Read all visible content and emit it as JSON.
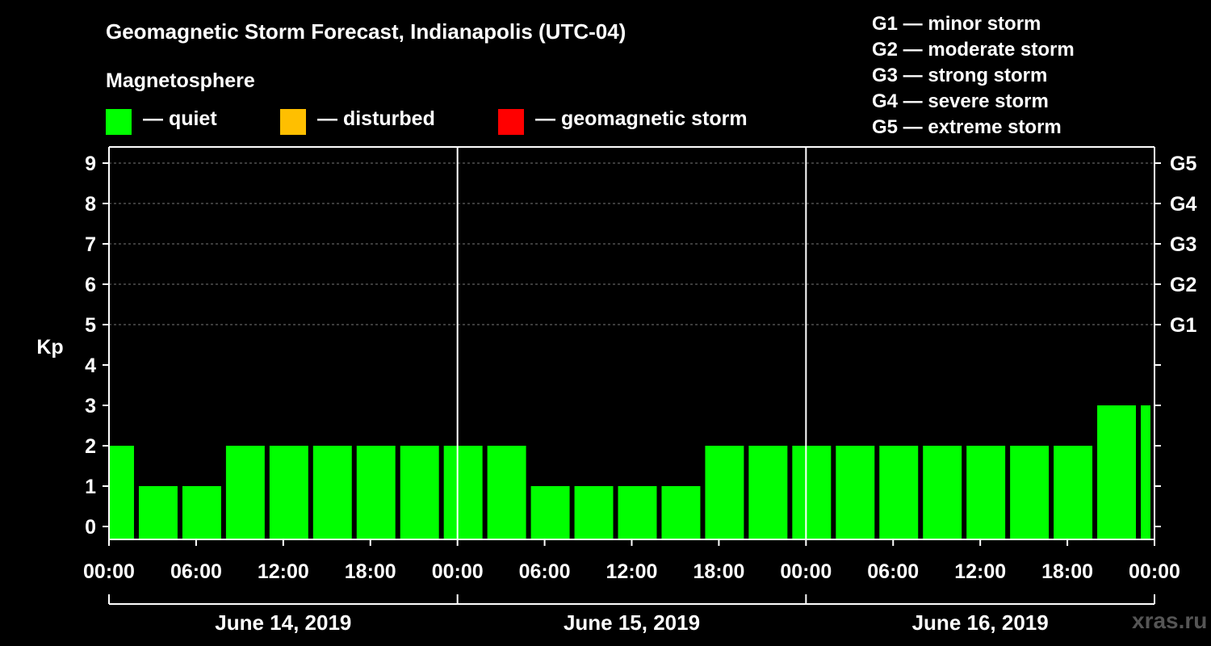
{
  "chart_data": {
    "type": "bar",
    "title": "Geomagnetic Storm Forecast, Indianapolis (UTC-04)",
    "subtitle": "Magnetosphere",
    "ylabel": "Kp",
    "ylim": [
      0,
      9
    ],
    "y_ticks": [
      "0",
      "1",
      "2",
      "3",
      "4",
      "5",
      "6",
      "7",
      "8",
      "9"
    ],
    "right_axis_labels": [
      {
        "kp": 5,
        "label": "G1"
      },
      {
        "kp": 6,
        "label": "G2"
      },
      {
        "kp": 7,
        "label": "G3"
      },
      {
        "kp": 8,
        "label": "G4"
      },
      {
        "kp": 9,
        "label": "G5"
      }
    ],
    "x_tick_labels": [
      "00:00",
      "06:00",
      "12:00",
      "18:00",
      "00:00",
      "06:00",
      "12:00",
      "18:00",
      "00:00",
      "06:00",
      "12:00",
      "18:00",
      "00:00"
    ],
    "days": [
      "June 14, 2019",
      "June 15, 2019",
      "June 16, 2019"
    ],
    "legend": [
      {
        "label": "— quiet",
        "color": "#00ff00"
      },
      {
        "label": "— disturbed",
        "color": "#ffbf00"
      },
      {
        "label": "— geomagnetic storm",
        "color": "#ff0000"
      }
    ],
    "storm_levels": [
      "G1 — minor storm",
      "G2 — moderate storm",
      "G3 — strong storm",
      "G4 — severe storm",
      "G5 — extreme storm"
    ],
    "bar_start_hours": [
      0,
      2,
      5,
      8,
      11,
      14,
      17,
      20,
      23,
      26,
      29,
      32,
      35,
      38,
      41,
      44,
      47,
      50,
      53,
      56,
      59,
      62,
      65,
      68,
      71
    ],
    "bar_end_hours": [
      2,
      5,
      8,
      11,
      14,
      17,
      20,
      23,
      26,
      29,
      32,
      35,
      38,
      41,
      44,
      47,
      50,
      53,
      56,
      59,
      62,
      65,
      68,
      71,
      72
    ],
    "values": [
      2,
      1,
      1,
      2,
      2,
      2,
      2,
      2,
      2,
      2,
      1,
      1,
      1,
      1,
      2,
      2,
      2,
      2,
      2,
      2,
      2,
      2,
      2,
      3,
      3
    ],
    "bar_color": "#00ff00"
  },
  "watermark": "xras.ru"
}
